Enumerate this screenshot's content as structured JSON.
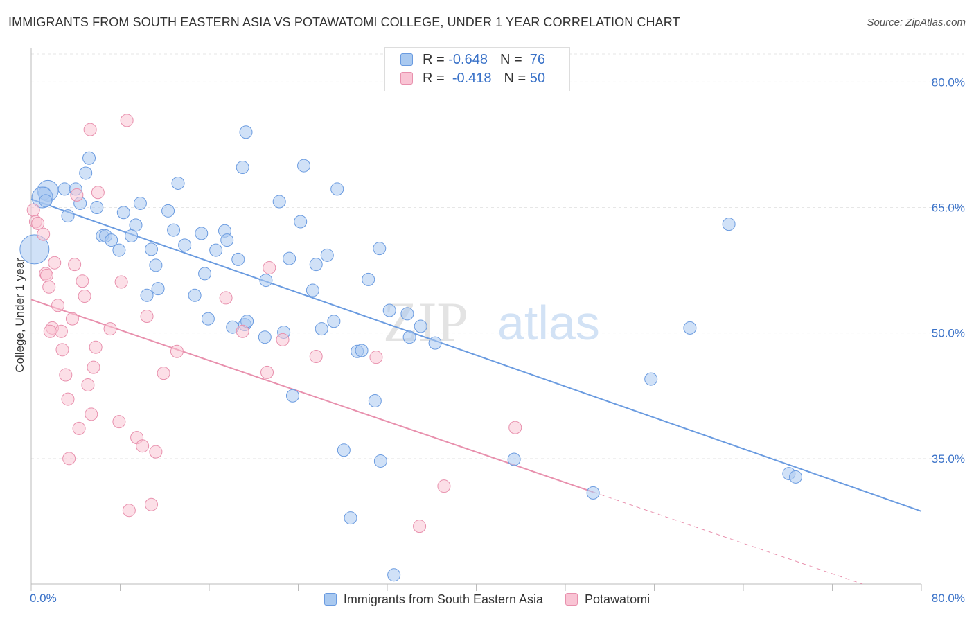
{
  "title": "IMMIGRANTS FROM SOUTH EASTERN ASIA VS POTAWATOMI COLLEGE, UNDER 1 YEAR CORRELATION CHART",
  "source": "Source: ZipAtlas.com",
  "watermark": {
    "zip": "ZIP",
    "atlas": "atlas"
  },
  "legend": {
    "r_label": "R =",
    "n_label": "N =",
    "items": [
      {
        "r": "-0.648",
        "n": "76",
        "color": "#a9c9f0",
        "border": "#6a9be0"
      },
      {
        "r": "-0.418",
        "n": "50",
        "color": "#f9c4d4",
        "border": "#e890ad"
      }
    ]
  },
  "bottom_legend": [
    {
      "label": "Immigrants from South Eastern Asia",
      "color": "#a9c9f0",
      "border": "#6a9be0"
    },
    {
      "label": "Potawatomi",
      "color": "#f9c4d4",
      "border": "#e890ad"
    }
  ],
  "chart_data": {
    "type": "scatter",
    "title": "IMMIGRANTS FROM SOUTH EASTERN ASIA VS POTAWATOMI COLLEGE, UNDER 1 YEAR CORRELATION CHART",
    "ylabel": "College, Under 1 year",
    "xlim": [
      0,
      80
    ],
    "ylim": [
      20,
      84
    ],
    "x_tick_labels": [
      {
        "value": 0,
        "label": "0.0%"
      },
      {
        "value": 80,
        "label": "80.0%"
      }
    ],
    "y_tick_labels": [
      {
        "value": 80,
        "label": "80.0%"
      },
      {
        "value": 65,
        "label": "65.0%"
      },
      {
        "value": 50,
        "label": "50.0%"
      },
      {
        "value": 35,
        "label": "35.0%"
      }
    ],
    "grid": true,
    "series": [
      {
        "name": "Immigrants from South Eastern Asia",
        "color": "#6a9be0",
        "fill": "#a9c9f0",
        "trend": {
          "x0": 0,
          "y0": 66.0,
          "x1": 80,
          "y1": 28.7
        },
        "points": [
          [
            1.2,
            66.7
          ],
          [
            1.5,
            67.0
          ],
          [
            1.0,
            66.2
          ],
          [
            0.3,
            60.0
          ],
          [
            3.0,
            67.2
          ],
          [
            4.0,
            67.2
          ],
          [
            3.3,
            64.0
          ],
          [
            5.2,
            70.9
          ],
          [
            4.9,
            69.1
          ],
          [
            4.4,
            65.5
          ],
          [
            5.9,
            65.0
          ],
          [
            6.4,
            61.6
          ],
          [
            6.7,
            61.6
          ],
          [
            7.2,
            61.1
          ],
          [
            7.9,
            59.9
          ],
          [
            8.3,
            64.4
          ],
          [
            9.4,
            62.9
          ],
          [
            9.0,
            61.6
          ],
          [
            9.8,
            65.5
          ],
          [
            10.8,
            60.0
          ],
          [
            11.2,
            58.1
          ],
          [
            11.4,
            55.3
          ],
          [
            10.4,
            54.5
          ],
          [
            12.3,
            64.6
          ],
          [
            13.2,
            67.9
          ],
          [
            12.8,
            62.3
          ],
          [
            13.8,
            60.5
          ],
          [
            14.7,
            54.5
          ],
          [
            15.3,
            61.9
          ],
          [
            15.6,
            57.1
          ],
          [
            15.9,
            51.7
          ],
          [
            16.6,
            59.9
          ],
          [
            17.4,
            62.2
          ],
          [
            17.6,
            61.1
          ],
          [
            18.1,
            50.7
          ],
          [
            18.6,
            58.8
          ],
          [
            19.2,
            51.0
          ],
          [
            19.4,
            51.4
          ],
          [
            19.0,
            69.8
          ],
          [
            19.3,
            74.0
          ],
          [
            21.0,
            49.5
          ],
          [
            21.1,
            56.3
          ],
          [
            22.3,
            65.7
          ],
          [
            22.7,
            50.1
          ],
          [
            23.2,
            58.9
          ],
          [
            23.5,
            42.5
          ],
          [
            24.2,
            63.3
          ],
          [
            24.5,
            70.0
          ],
          [
            25.3,
            55.1
          ],
          [
            25.6,
            58.2
          ],
          [
            26.1,
            50.5
          ],
          [
            26.6,
            59.3
          ],
          [
            27.2,
            51.4
          ],
          [
            27.5,
            67.2
          ],
          [
            28.1,
            36.0
          ],
          [
            28.7,
            27.9
          ],
          [
            29.3,
            47.8
          ],
          [
            29.7,
            47.9
          ],
          [
            30.3,
            56.4
          ],
          [
            30.9,
            41.9
          ],
          [
            31.3,
            60.1
          ],
          [
            31.4,
            34.7
          ],
          [
            32.2,
            52.7
          ],
          [
            32.6,
            21.1
          ],
          [
            33.8,
            52.3
          ],
          [
            34.0,
            49.5
          ],
          [
            35.0,
            50.8
          ],
          [
            36.3,
            48.8
          ],
          [
            43.4,
            34.9
          ],
          [
            50.5,
            30.9
          ],
          [
            55.7,
            44.5
          ],
          [
            59.2,
            50.6
          ],
          [
            62.7,
            63.0
          ],
          [
            68.1,
            33.2
          ],
          [
            68.7,
            32.8
          ],
          [
            1.3,
            65.8
          ]
        ],
        "large_points": [
          [
            0.3,
            60.0
          ],
          [
            1.5,
            67.0
          ],
          [
            1.0,
            66.2
          ]
        ]
      },
      {
        "name": "Potawatomi",
        "color": "#e890ad",
        "fill": "#f9c4d4",
        "trend": {
          "x0": 0,
          "y0": 54.0,
          "x1": 50.5,
          "y1": 31.0
        },
        "trend_dashed": {
          "x0": 50.5,
          "y0": 31.0,
          "x1": 80,
          "y1": 17.6
        },
        "points": [
          [
            0.2,
            64.7
          ],
          [
            0.4,
            63.3
          ],
          [
            0.6,
            63.1
          ],
          [
            1.1,
            61.8
          ],
          [
            1.3,
            57.1
          ],
          [
            1.4,
            56.9
          ],
          [
            1.6,
            55.5
          ],
          [
            2.1,
            58.4
          ],
          [
            2.4,
            53.3
          ],
          [
            1.9,
            50.6
          ],
          [
            1.7,
            50.2
          ],
          [
            2.7,
            50.2
          ],
          [
            2.8,
            48.0
          ],
          [
            3.1,
            45.0
          ],
          [
            3.3,
            42.1
          ],
          [
            3.4,
            35.0
          ],
          [
            3.7,
            51.7
          ],
          [
            3.9,
            58.2
          ],
          [
            4.3,
            38.6
          ],
          [
            4.6,
            56.2
          ],
          [
            4.8,
            54.4
          ],
          [
            4.1,
            66.5
          ],
          [
            5.1,
            43.8
          ],
          [
            5.4,
            40.3
          ],
          [
            5.6,
            45.9
          ],
          [
            5.8,
            48.3
          ],
          [
            5.3,
            74.3
          ],
          [
            6.0,
            66.8
          ],
          [
            7.1,
            50.5
          ],
          [
            7.9,
            39.4
          ],
          [
            8.1,
            56.1
          ],
          [
            8.6,
            75.4
          ],
          [
            8.8,
            28.8
          ],
          [
            9.5,
            37.5
          ],
          [
            10.0,
            36.5
          ],
          [
            10.4,
            52.0
          ],
          [
            10.8,
            29.5
          ],
          [
            11.2,
            35.8
          ],
          [
            11.9,
            45.2
          ],
          [
            13.1,
            47.8
          ],
          [
            17.5,
            54.2
          ],
          [
            19.0,
            50.2
          ],
          [
            21.2,
            45.3
          ],
          [
            21.4,
            57.8
          ],
          [
            22.6,
            49.2
          ],
          [
            25.6,
            47.2
          ],
          [
            31.0,
            47.1
          ],
          [
            34.9,
            26.9
          ],
          [
            37.1,
            31.7
          ],
          [
            43.5,
            38.7
          ]
        ]
      }
    ]
  }
}
